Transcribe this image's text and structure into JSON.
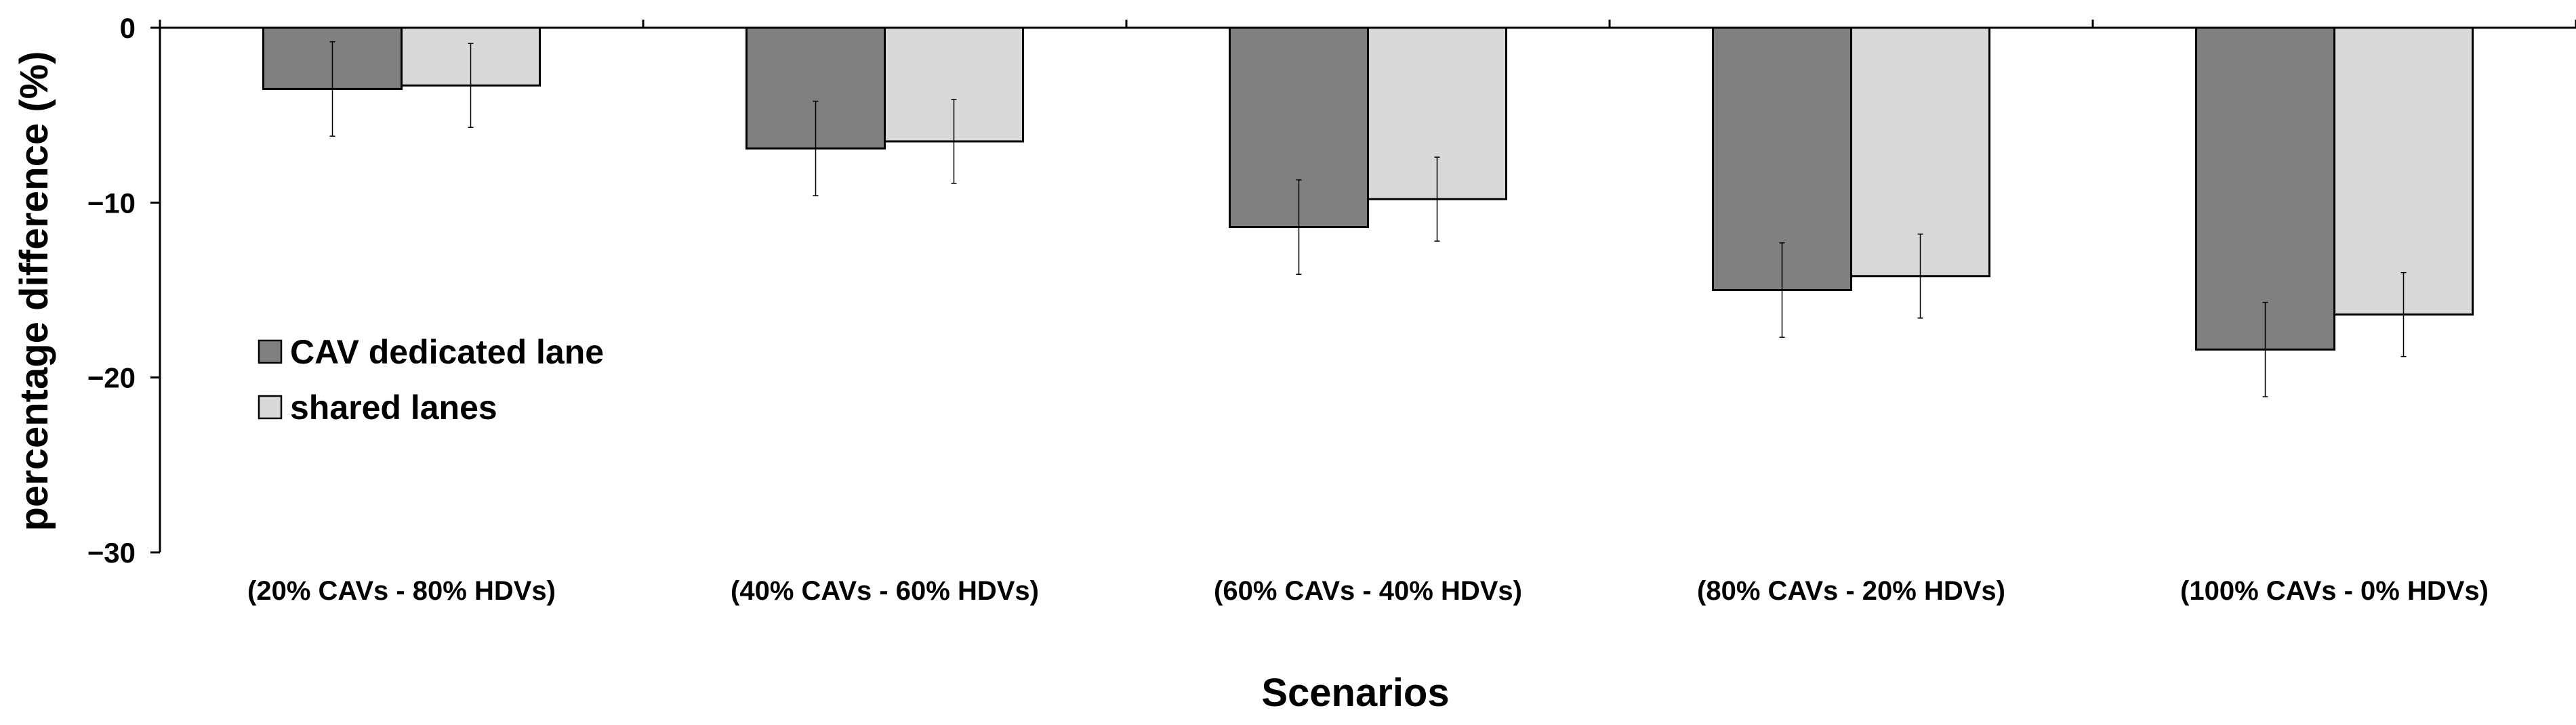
{
  "chart_data": {
    "type": "bar",
    "title": "",
    "xlabel": "Scenarios",
    "ylabel": "percentage difference (%)",
    "ylim": [
      -30,
      0
    ],
    "yticks": [
      0,
      -10,
      -20,
      -30
    ],
    "ytick_labels": [
      "0",
      "−10",
      "−20",
      "−30"
    ],
    "categories": [
      "(20% CAVs - 80% HDVs)",
      "(40% CAVs - 60% HDVs)",
      "(60% CAVs - 40% HDVs)",
      "(80% CAVs - 20% HDVs)",
      "(100% CAVs - 0% HDVs)"
    ],
    "series": [
      {
        "name": "CAV dedicated lane",
        "color": "#808080",
        "values": [
          -3.5,
          -6.9,
          -11.4,
          -15.0,
          -18.4
        ],
        "errors": [
          2.7,
          2.7,
          2.7,
          2.7,
          2.7
        ]
      },
      {
        "name": "shared lanes",
        "color": "#d9d9d9",
        "values": [
          -3.3,
          -6.5,
          -9.8,
          -14.2,
          -16.4
        ],
        "errors": [
          2.4,
          2.4,
          2.4,
          2.4,
          2.4
        ]
      }
    ],
    "legend_position": "left",
    "grid": false
  }
}
